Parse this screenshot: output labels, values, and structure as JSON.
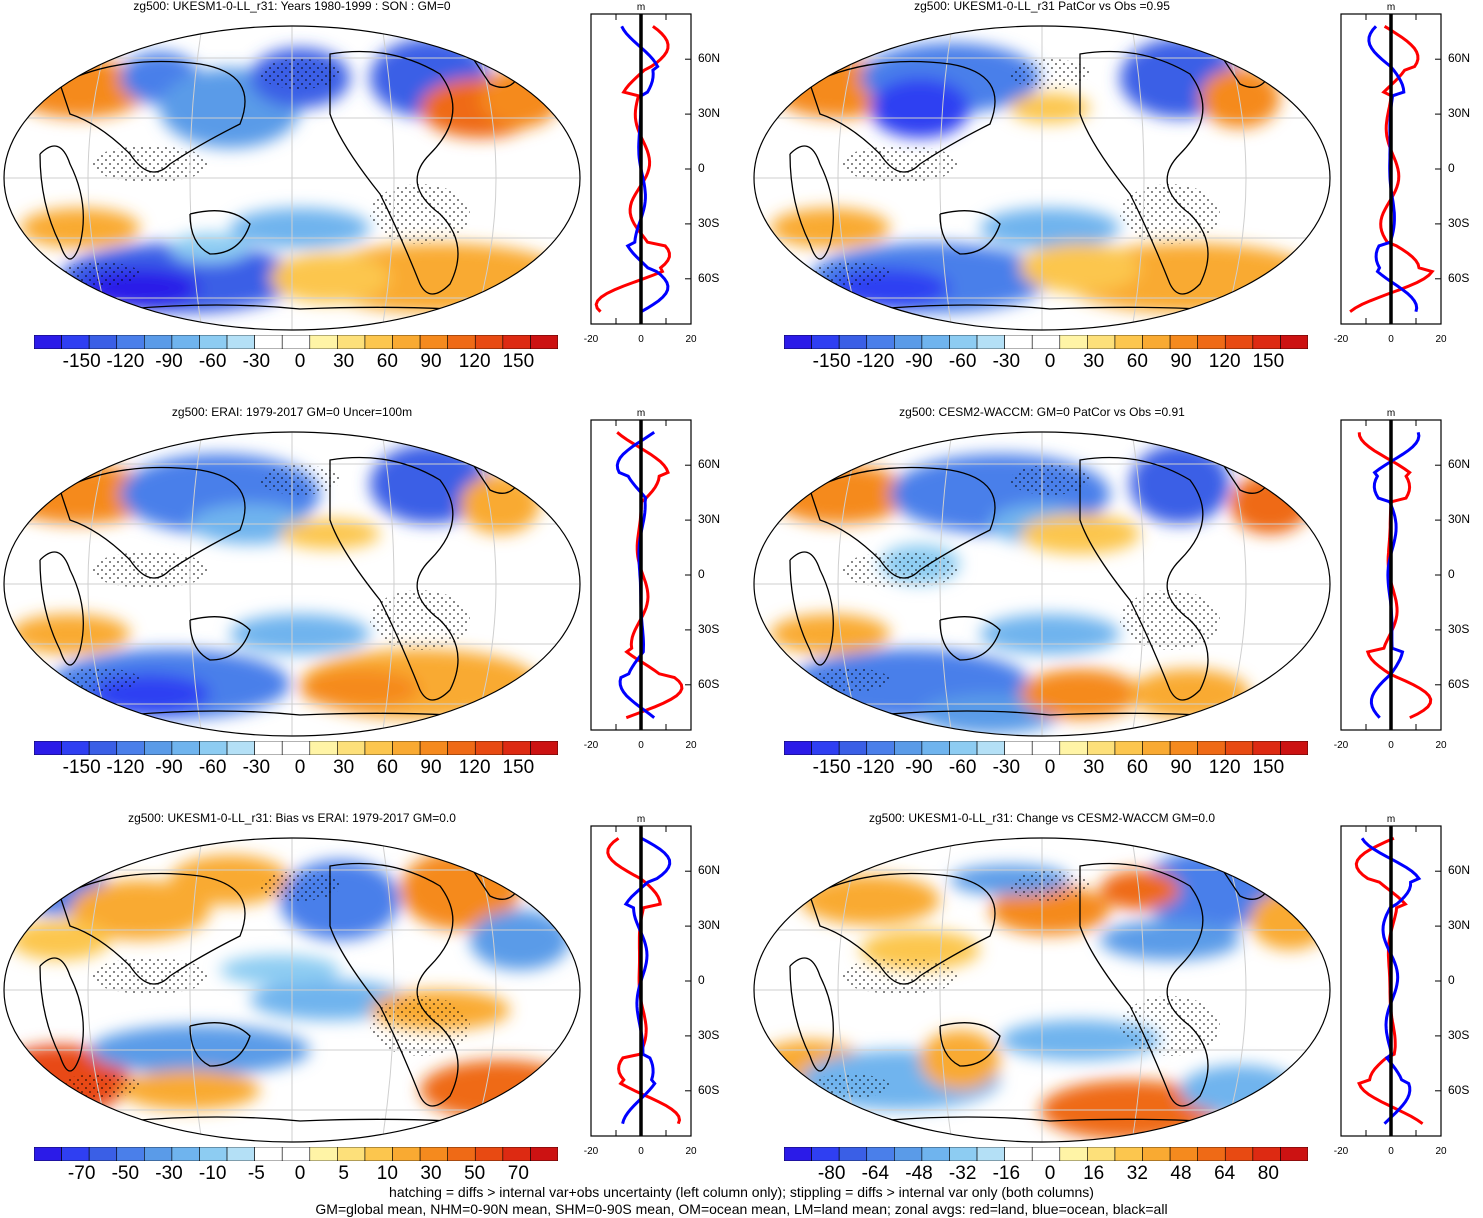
{
  "panels": [
    {
      "title": "zg500: UKESM1-0-LL_r31: Years 1980-1999 : SON : GM=0",
      "colorbar": [
        "-150",
        "-120",
        "-90",
        "-60",
        "-30",
        "0",
        "30",
        "60",
        "90",
        "120",
        "150"
      ],
      "profile_ticks": [
        "-20",
        "0",
        "20"
      ],
      "profile_unit": "m",
      "lat_labels": [
        "60N",
        "30N",
        "0",
        "30S",
        "60S"
      ]
    },
    {
      "title": "zg500: UKESM1-0-LL_r31 PatCor vs Obs =0.95",
      "colorbar": [
        "-150",
        "-120",
        "-90",
        "-60",
        "-30",
        "0",
        "30",
        "60",
        "90",
        "120",
        "150"
      ],
      "profile_ticks": [
        "-20",
        "0",
        "20"
      ],
      "profile_unit": "m",
      "lat_labels": [
        "60N",
        "30N",
        "0",
        "30S",
        "60S"
      ]
    },
    {
      "title": "zg500: ERAI: 1979-2017 GM=0 Uncer=100m",
      "colorbar": [
        "-150",
        "-120",
        "-90",
        "-60",
        "-30",
        "0",
        "30",
        "60",
        "90",
        "120",
        "150"
      ],
      "profile_ticks": [
        "-20",
        "0",
        "20"
      ],
      "profile_unit": "m",
      "lat_labels": [
        "60N",
        "30N",
        "0",
        "30S",
        "60S"
      ]
    },
    {
      "title": "zg500: CESM2-WACCM: GM=0 PatCor vs Obs =0.91",
      "colorbar": [
        "-150",
        "-120",
        "-90",
        "-60",
        "-30",
        "0",
        "30",
        "60",
        "90",
        "120",
        "150"
      ],
      "profile_ticks": [
        "-20",
        "0",
        "20"
      ],
      "profile_unit": "m",
      "lat_labels": [
        "60N",
        "30N",
        "0",
        "30S",
        "60S"
      ]
    },
    {
      "title": "zg500: UKESM1-0-LL_r31: Bias vs ERAI: 1979-2017  GM=0.0",
      "colorbar": [
        "-70",
        "-50",
        "-30",
        "-10",
        "-5",
        "0",
        "5",
        "10",
        "30",
        "50",
        "70"
      ],
      "profile_ticks": [
        "-20",
        "0",
        "20"
      ],
      "profile_unit": "m",
      "lat_labels": [
        "60N",
        "30N",
        "0",
        "30S",
        "60S"
      ]
    },
    {
      "title": "zg500: UKESM1-0-LL_r31: Change vs CESM2-WACCM GM=0.0",
      "colorbar": [
        "-80",
        "-64",
        "-48",
        "-32",
        "-16",
        "0",
        "16",
        "32",
        "48",
        "64",
        "80"
      ],
      "profile_ticks": [
        "-20",
        "0",
        "20"
      ],
      "profile_unit": "m",
      "lat_labels": [
        "60N",
        "30N",
        "0",
        "30S",
        "60S"
      ]
    }
  ],
  "colors": {
    "palette": [
      "#2b1be8",
      "#2f3ff2",
      "#3a5fe6",
      "#4a7fea",
      "#5a9be8",
      "#6fb4ee",
      "#8dccf2",
      "#b4e0f6",
      "#ffffff",
      "#ffffff",
      "#fff4a6",
      "#fde07a",
      "#fcc64e",
      "#f9aa32",
      "#f58a1e",
      "#ef6a16",
      "#e84a12",
      "#dd2a12",
      "#cc1212"
    ],
    "land_profile": "#ff0000",
    "ocean_profile": "#0000ff",
    "all_profile": "#000000"
  },
  "footer": {
    "line1": "hatching = diffs > internal var+obs uncertainty (left column only); stippling = diffs > internal var only (both columns)",
    "line2": "GM=global mean, NHM=0-90N mean, SHM=0-90S mean, OM=ocean mean, LM=land mean; zonal avgs: red=land, blue=ocean, black=all"
  }
}
